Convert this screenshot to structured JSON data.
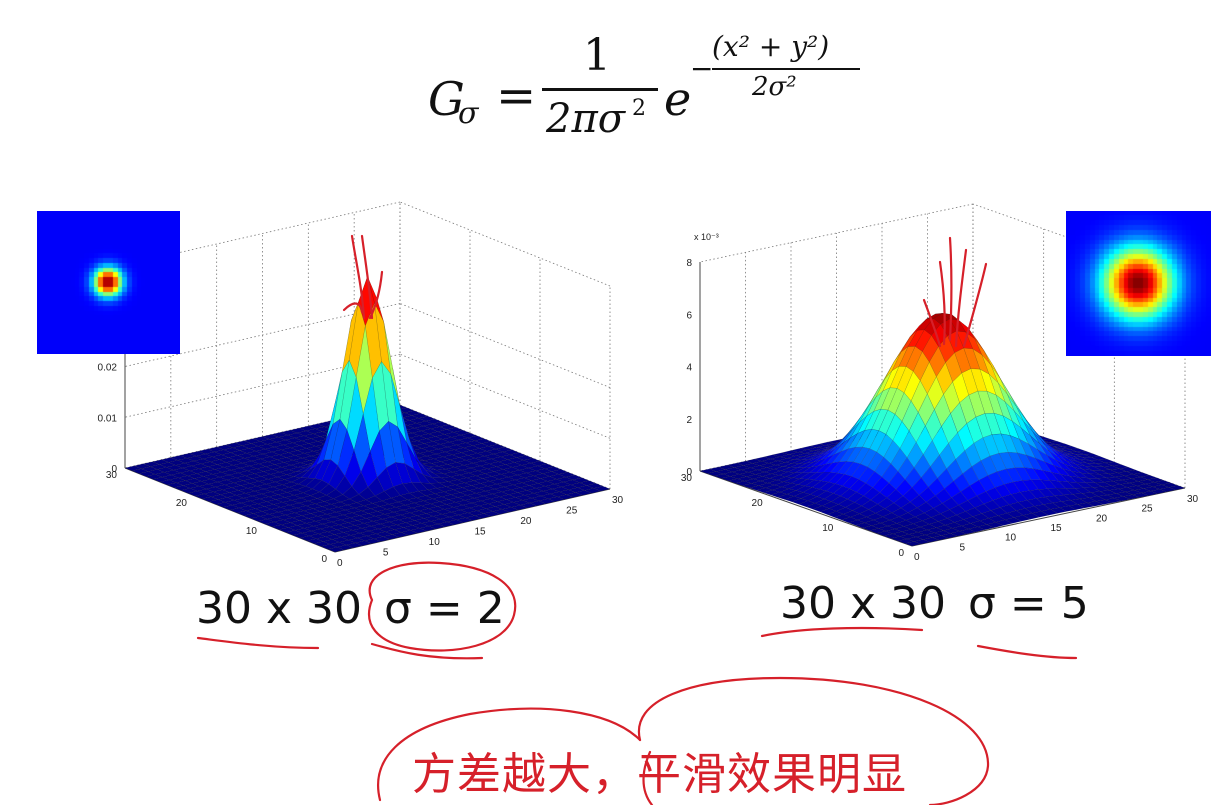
{
  "formula": {
    "lhs": "G",
    "lhs_sub": "σ",
    "equals": "=",
    "numerator": "1",
    "denominator": "2πσ",
    "denominator_exp": "2",
    "base": "e",
    "exp_sign": "−",
    "exp_numerator": "(x² + y²)",
    "exp_denominator": "2σ²"
  },
  "chart_data": [
    {
      "type": "surface",
      "title": "",
      "grid_size": 30,
      "sigma": 2,
      "x_ticks": [
        "0",
        "5",
        "10",
        "15",
        "20",
        "25",
        "30"
      ],
      "y_ticks": [
        "0",
        "10",
        "20",
        "30"
      ],
      "z_ticks": [
        "0",
        "0.01",
        "0.02"
      ],
      "z_exponent_label": "",
      "zlim": [
        0,
        0.04
      ],
      "peak": 0.0398,
      "grid": true,
      "colormap": "jet",
      "caption": "30 x 30",
      "caption_sigma": "σ = 2",
      "inset": {
        "type": "heatmap",
        "sigma": 2,
        "colormap": "jet"
      }
    },
    {
      "type": "surface",
      "title": "",
      "grid_size": 30,
      "sigma": 5,
      "x_ticks": [
        "0",
        "5",
        "10",
        "15",
        "20",
        "25",
        "30"
      ],
      "y_ticks": [
        "0",
        "10",
        "20",
        "30"
      ],
      "z_ticks": [
        "0",
        "2",
        "4",
        "6",
        "8"
      ],
      "z_exponent_label": "x 10⁻³",
      "zlim": [
        0,
        0.008
      ],
      "peak": 0.00637,
      "grid": true,
      "colormap": "jet",
      "caption": "30 x 30",
      "caption_sigma": "σ = 5",
      "inset": {
        "type": "heatmap",
        "sigma": 5,
        "colormap": "jet"
      }
    }
  ],
  "annotation": {
    "note": "方差越大，平滑效果明显",
    "ink_color": "#d6202a"
  }
}
